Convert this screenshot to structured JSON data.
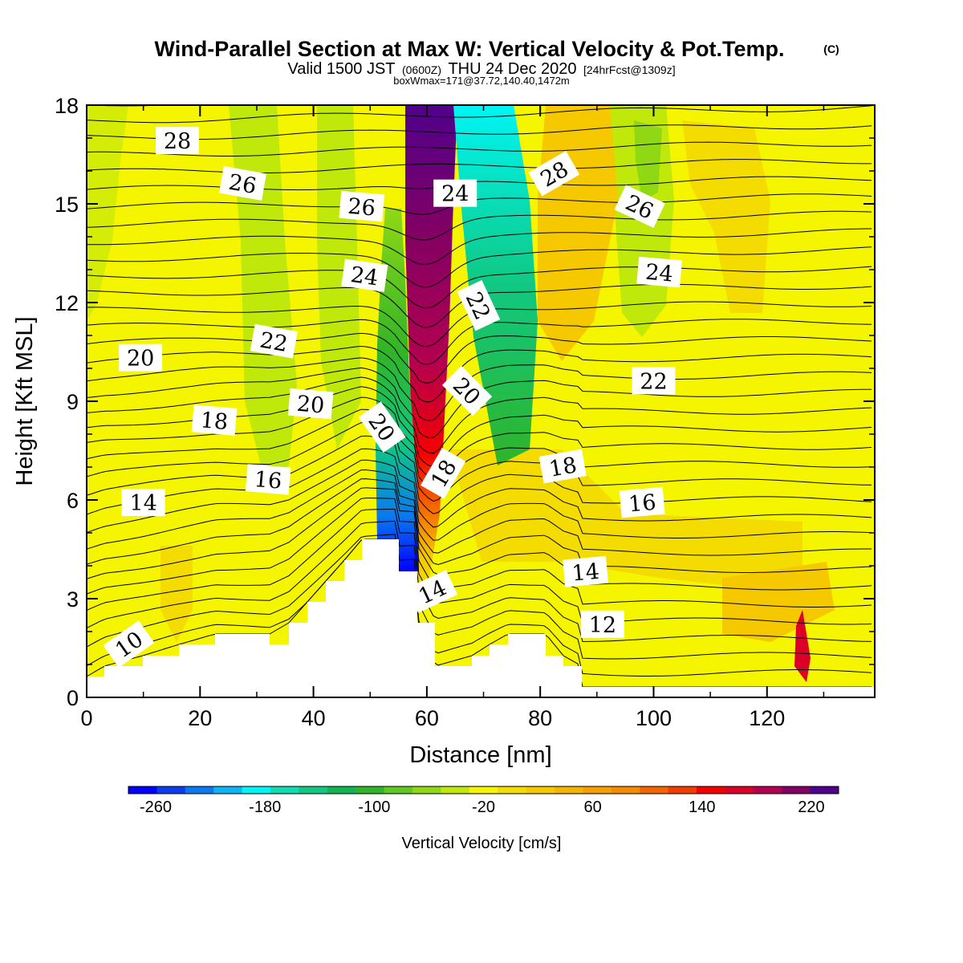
{
  "chart_data": {
    "type": "heatmap",
    "title": "Wind-Parallel Section at Max W: Vertical Velocity & Pot.Temp.",
    "title_mark": "(C)",
    "subtitle_parts": [
      "Valid 1500 JST",
      "(0600Z)",
      "THU 24 Dec 2020",
      "[24hrFcst@1309z]"
    ],
    "subtitle2": "boxWmax=171@37.72,140.40,1472m",
    "xlabel": "Distance [nm]",
    "ylabel": "Height [Kft MSL]",
    "xlim": [
      0,
      139
    ],
    "ylim": [
      0,
      18
    ],
    "x_ticks": [
      0,
      20,
      40,
      60,
      80,
      100,
      120
    ],
    "y_ticks": [
      0,
      3,
      6,
      9,
      12,
      15,
      18
    ],
    "colorbar": {
      "label": "Vertical Velocity [cm/s]",
      "tick_labels": [
        -260,
        -180,
        -100,
        -20,
        60,
        140,
        220
      ],
      "colors": [
        "#0000ff",
        "#0a3cf0",
        "#0a78f0",
        "#0ab4f5",
        "#00f5f5",
        "#10dcb4",
        "#10c882",
        "#10b450",
        "#30b428",
        "#60c820",
        "#90d814",
        "#c0e80a",
        "#f5f500",
        "#f5dc00",
        "#f5c800",
        "#f5b400",
        "#f5a000",
        "#f58c00",
        "#f56400",
        "#f53c00",
        "#f50000",
        "#dc0028",
        "#b40050",
        "#820064",
        "#50008c"
      ]
    },
    "contour_labels": [
      {
        "text": "10",
        "x": 7.5,
        "y": 1.6,
        "angle": -35
      },
      {
        "text": "12",
        "x": 91,
        "y": 2.2,
        "angle": 0
      },
      {
        "text": "14",
        "x": 10,
        "y": 5.9,
        "angle": 0
      },
      {
        "text": "14",
        "x": 61,
        "y": 3.2,
        "angle": -25
      },
      {
        "text": "14",
        "x": 88,
        "y": 3.8,
        "angle": -5
      },
      {
        "text": "16",
        "x": 32,
        "y": 6.6,
        "angle": 5
      },
      {
        "text": "16",
        "x": 98,
        "y": 5.9,
        "angle": -5
      },
      {
        "text": "18",
        "x": 22.5,
        "y": 8.4,
        "angle": 5
      },
      {
        "text": "18",
        "x": 63,
        "y": 6.8,
        "angle": -60
      },
      {
        "text": "18",
        "x": 84,
        "y": 7.0,
        "angle": -10
      },
      {
        "text": "20",
        "x": 9.5,
        "y": 10.3,
        "angle": 0
      },
      {
        "text": "20",
        "x": 39.5,
        "y": 8.9,
        "angle": 5
      },
      {
        "text": "20",
        "x": 52,
        "y": 8.2,
        "angle": 55
      },
      {
        "text": "20",
        "x": 67,
        "y": 9.3,
        "angle": 45
      },
      {
        "text": "22",
        "x": 33,
        "y": 10.8,
        "angle": 10
      },
      {
        "text": "22",
        "x": 69,
        "y": 11.9,
        "angle": 65
      },
      {
        "text": "22",
        "x": 100,
        "y": 9.6,
        "angle": 0
      },
      {
        "text": "24",
        "x": 49,
        "y": 12.8,
        "angle": 8
      },
      {
        "text": "24",
        "x": 65,
        "y": 15.3,
        "angle": 0
      },
      {
        "text": "24",
        "x": 101,
        "y": 12.9,
        "angle": 5
      },
      {
        "text": "26",
        "x": 27.5,
        "y": 15.6,
        "angle": 10
      },
      {
        "text": "26",
        "x": 48.5,
        "y": 14.9,
        "angle": 5
      },
      {
        "text": "26",
        "x": 97.5,
        "y": 14.9,
        "angle": 25
      },
      {
        "text": "28",
        "x": 16,
        "y": 16.9,
        "angle": 0
      },
      {
        "text": "28",
        "x": 82.5,
        "y": 15.9,
        "angle": -30
      }
    ]
  }
}
